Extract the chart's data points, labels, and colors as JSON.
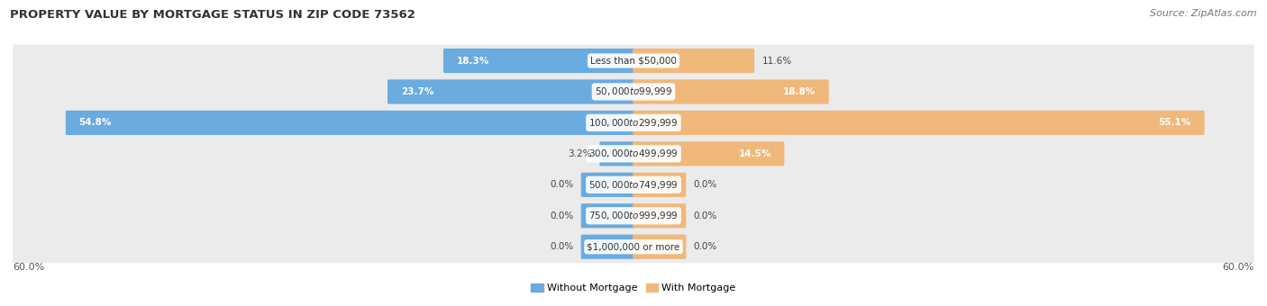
{
  "title": "PROPERTY VALUE BY MORTGAGE STATUS IN ZIP CODE 73562",
  "source": "Source: ZipAtlas.com",
  "categories": [
    "Less than $50,000",
    "$50,000 to $99,999",
    "$100,000 to $299,999",
    "$300,000 to $499,999",
    "$500,000 to $749,999",
    "$750,000 to $999,999",
    "$1,000,000 or more"
  ],
  "without_mortgage": [
    18.3,
    23.7,
    54.8,
    3.2,
    0.0,
    0.0,
    0.0
  ],
  "with_mortgage": [
    11.6,
    18.8,
    55.1,
    14.5,
    0.0,
    0.0,
    0.0
  ],
  "color_without": "#6aabe0",
  "color_with": "#f0b87a",
  "axis_max": 60.0,
  "bg_color": "#ffffff",
  "row_bg_color": "#ebebeb",
  "legend_without": "Without Mortgage",
  "legend_with": "With Mortgage",
  "label_inside_threshold": 12.0,
  "zero_bar_width": 5.0
}
